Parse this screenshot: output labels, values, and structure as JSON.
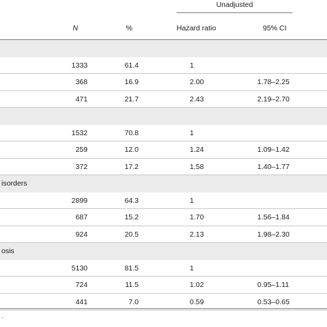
{
  "header": {
    "group_label": "Unadjusted",
    "n_label": "N",
    "pct_label": "%",
    "hr_label": "Hazard ratio",
    "ci_label": "95% CI"
  },
  "sections": [
    {
      "label": "",
      "rows": [
        {
          "n": "1333",
          "pct": "61.4",
          "hr": "1",
          "ci": ""
        },
        {
          "n": "368",
          "pct": "16.9",
          "hr": "2.00",
          "ci": "1.78–2.25"
        },
        {
          "n": "471",
          "pct": "21.7",
          "hr": "2.43",
          "ci": "2.19–2.70"
        }
      ]
    },
    {
      "label": "",
      "rows": [
        {
          "n": "1532",
          "pct": "70.8",
          "hr": "1",
          "ci": ""
        },
        {
          "n": "259",
          "pct": "12.0",
          "hr": "1.24",
          "ci": "1.09–1.42"
        },
        {
          "n": "372",
          "pct": "17.2",
          "hr": "1.58",
          "ci": "1.40–1.77"
        }
      ]
    },
    {
      "label": "isorders",
      "rows": [
        {
          "n": "2899",
          "pct": "64.3",
          "hr": "1",
          "ci": ""
        },
        {
          "n": "687",
          "pct": "15.2",
          "hr": "1.70",
          "ci": "1.56–1.84"
        },
        {
          "n": "924",
          "pct": "20.5",
          "hr": "2.13",
          "ci": "1.98–2.30"
        }
      ]
    },
    {
      "label": "osis",
      "rows": [
        {
          "n": "5130",
          "pct": "81.5",
          "hr": "1",
          "ci": ""
        },
        {
          "n": "724",
          "pct": "11.5",
          "hr": "1.02",
          "ci": "0.95–1.11"
        },
        {
          "n": "441",
          "pct": "7.0",
          "hr": "0.59",
          "ci": "0.53–0.65"
        }
      ]
    }
  ],
  "footnote": "."
}
